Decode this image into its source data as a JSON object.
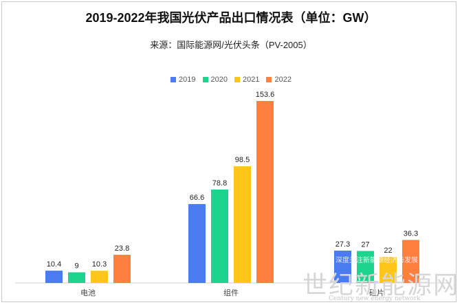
{
  "chart_data": {
    "type": "bar",
    "title": "2019-2022年我国光伏产品出口情况表（单位：GW）",
    "subtitle": "来源：国际能源网/光伏头条（PV-2005）",
    "categories": [
      "电池",
      "组件",
      "硅片"
    ],
    "series": [
      {
        "name": "2019",
        "color": "#4a7bf0",
        "values": [
          10.4,
          66.6,
          27.3
        ]
      },
      {
        "name": "2020",
        "color": "#1dd48e",
        "values": [
          9,
          78.8,
          27
        ]
      },
      {
        "name": "2021",
        "color": "#ffc61a",
        "values": [
          10.3,
          98.5,
          22
        ]
      },
      {
        "name": "2022",
        "color": "#ff7f3f",
        "values": [
          23.8,
          153.6,
          36.3
        ]
      }
    ],
    "ylim": [
      0,
      160
    ],
    "grid": false,
    "legend_position": "top-center",
    "xlabel": "",
    "ylabel": ""
  },
  "watermark": {
    "main": "世纪新能源网",
    "sub": "Century new energy network",
    "overlay": "深度关注新能源经济与发展"
  }
}
